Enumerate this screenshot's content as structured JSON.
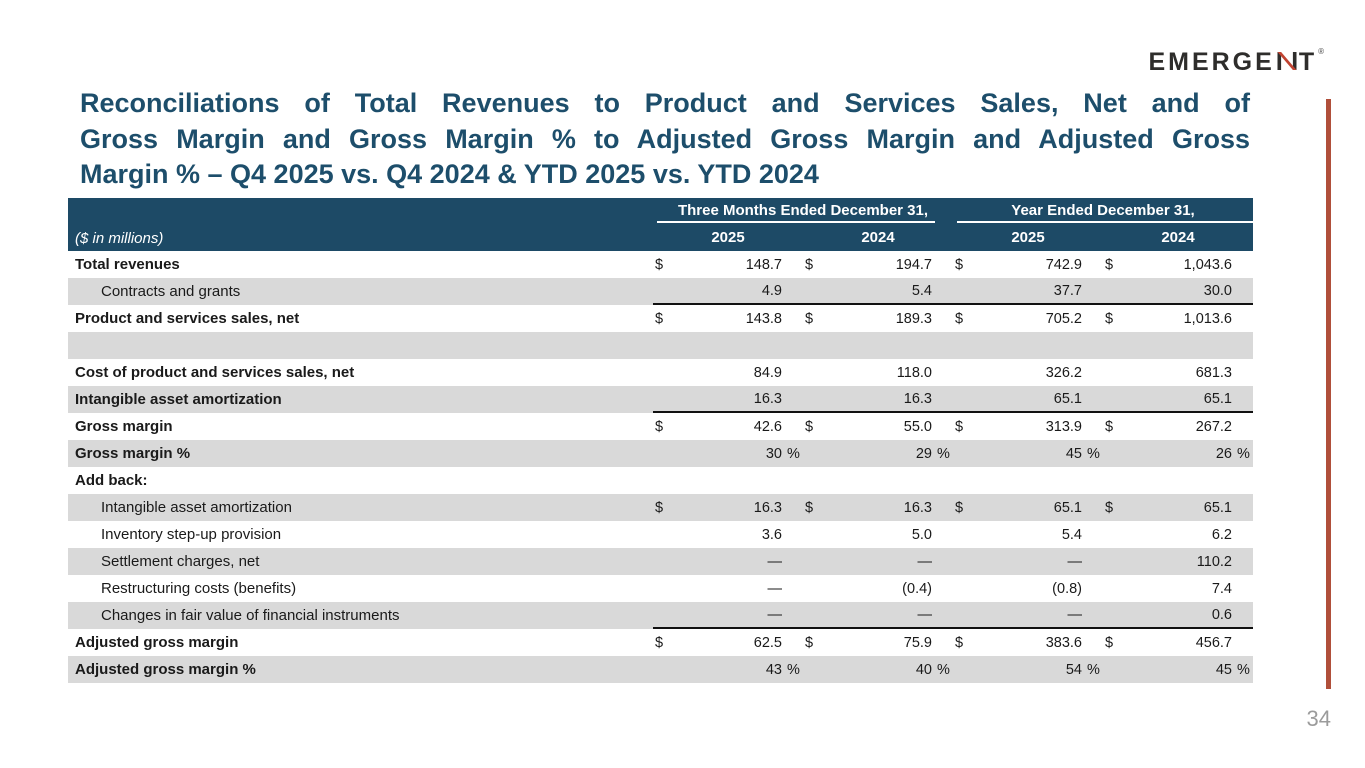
{
  "logo": {
    "text": "EMERGENT",
    "trademark": "®"
  },
  "title": {
    "lines": [
      "Reconciliations of Total Revenues to Product and Services Sales, Net and of",
      "Gross Margin and Gross Margin % to Adjusted Gross Margin and Adjusted Gross",
      "Margin % – Q4 2025 vs. Q4 2024 & YTD 2025 vs. YTD 2024"
    ]
  },
  "page_number": "34",
  "table": {
    "unit_label": "($ in millions)",
    "col_groups": [
      "Three Months Ended December 31,",
      "Year Ended December 31,"
    ],
    "years": [
      "2025",
      "2024",
      "2025",
      "2024"
    ],
    "symbols": {
      "dollar": "$",
      "percent": "%",
      "zero": "—"
    },
    "rows": [
      {
        "label": "Total revenues",
        "bold": true,
        "dollar": true,
        "shaded": false,
        "values": [
          "148.7",
          "194.7",
          "742.9",
          "1,043.6"
        ]
      },
      {
        "label": "Contracts and grants",
        "indent": true,
        "shaded": true,
        "underline": true,
        "values": [
          "4.9",
          "5.4",
          "37.7",
          "30.0"
        ]
      },
      {
        "label": "Product and services sales, net",
        "bold": true,
        "dollar": true,
        "shaded": false,
        "values": [
          "143.8",
          "189.3",
          "705.2",
          "1,013.6"
        ]
      },
      {
        "label": "",
        "spacer": true,
        "shaded": true,
        "values": [
          "",
          "",
          "",
          ""
        ]
      },
      {
        "label": "Cost of product and services sales, net",
        "bold": true,
        "shaded": false,
        "values": [
          "84.9",
          "118.0",
          "326.2",
          "681.3"
        ]
      },
      {
        "label": "Intangible asset amortization",
        "bold": true,
        "shaded": true,
        "underline": true,
        "values": [
          "16.3",
          "16.3",
          "65.1",
          "65.1"
        ]
      },
      {
        "label": "Gross margin",
        "bold": true,
        "dollar": true,
        "shaded": false,
        "values": [
          "42.6",
          "55.0",
          "313.9",
          "267.2"
        ]
      },
      {
        "label": "Gross margin %",
        "bold": true,
        "shaded": true,
        "percent": true,
        "values": [
          "30",
          "29",
          "45",
          "26"
        ]
      },
      {
        "label": "Add back:",
        "bold": true,
        "shaded": false,
        "values": [
          "",
          "",
          "",
          ""
        ]
      },
      {
        "label": "Intangible asset amortization",
        "indent": true,
        "shaded": true,
        "dollar": true,
        "values": [
          "16.3",
          "16.3",
          "65.1",
          "65.1"
        ]
      },
      {
        "label": "Inventory step-up provision",
        "indent": true,
        "shaded": false,
        "values": [
          "3.6",
          "5.0",
          "5.4",
          "6.2"
        ]
      },
      {
        "label": "Settlement charges, net",
        "indent": true,
        "shaded": true,
        "values": [
          "—",
          "—",
          "—",
          "110.2"
        ]
      },
      {
        "label": "Restructuring costs (benefits)",
        "indent": true,
        "shaded": false,
        "values": [
          "—",
          "(0.4)",
          "(0.8)",
          "7.4"
        ]
      },
      {
        "label": "Changes in fair value of financial instruments",
        "indent": true,
        "shaded": true,
        "underline": true,
        "values": [
          "—",
          "—",
          "—",
          "0.6"
        ]
      },
      {
        "label": "Adjusted gross margin",
        "bold": true,
        "dollar": true,
        "shaded": false,
        "values": [
          "62.5",
          "75.9",
          "383.6",
          "456.7"
        ]
      },
      {
        "label": "Adjusted gross margin %",
        "bold": true,
        "shaded": true,
        "percent": true,
        "values": [
          "43",
          "40",
          "54",
          "45"
        ]
      }
    ]
  },
  "colors": {
    "title_blue": "#1d4e6b",
    "header_bg": "#1d4a66",
    "row_shade": "#d9d9d9",
    "accent_red": "#b04f3a",
    "logo_dark": "#2e2d2b",
    "logo_red": "#c04331",
    "page_number": "#9b9b9b"
  }
}
